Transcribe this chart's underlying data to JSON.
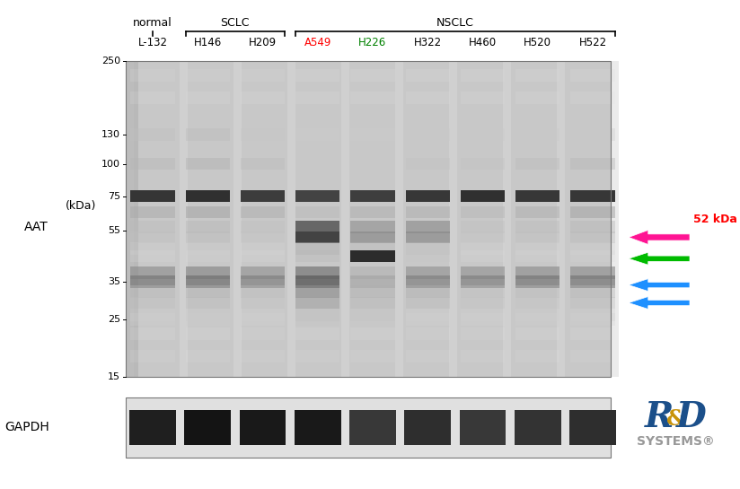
{
  "title": "",
  "normal_label": "normal",
  "sclc_label": "SCLC",
  "nsclc_label": "NSCLC",
  "kda_label": "(kDa)",
  "aat_label": "AAT",
  "gapdh_label": "GAPDH",
  "lane_labels": [
    "L-132",
    "H146",
    "H209",
    "A549",
    "H226",
    "H322",
    "H460",
    "H520",
    "H522"
  ],
  "lane_label_colors": [
    "black",
    "black",
    "black",
    "red",
    "green",
    "black",
    "black",
    "black",
    "black"
  ],
  "mw_markers": [
    250,
    130,
    100,
    75,
    55,
    35,
    25,
    15
  ],
  "arrow_pink_color": "#FF1493",
  "arrow_green_color": "#00BB00",
  "arrow_blue_color": "#1E90FF",
  "label_52kda": "52 kDa",
  "label_52kda_color": "red",
  "background_color": "#ffffff",
  "rd_systems_blue": "#1B4F8A",
  "rd_systems_gold": "#C8930A"
}
